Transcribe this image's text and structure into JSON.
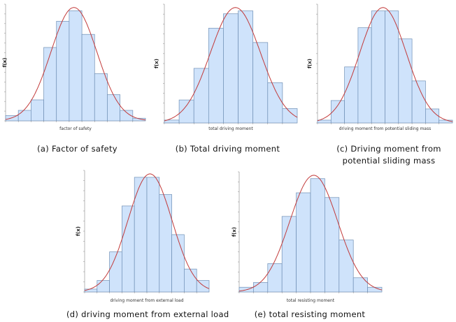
{
  "chart_data": [
    {
      "id": "a",
      "type": "bar",
      "caption": "(a) Factor of safety",
      "xlabel": "factor of safety",
      "ylabel": "f(x)",
      "bins": 11,
      "values": [
        0.01,
        0.02,
        0.04,
        0.14,
        0.19,
        0.21,
        0.165,
        0.09,
        0.05,
        0.02,
        0.005
      ]
    },
    {
      "id": "b",
      "type": "bar",
      "caption": "(b) Total driving moment",
      "xlabel": "total driving moment",
      "ylabel": "f(x)",
      "bins": 9,
      "values": [
        0.005,
        0.04,
        0.095,
        0.165,
        0.19,
        0.195,
        0.14,
        0.07,
        0.025
      ]
    },
    {
      "id": "c",
      "type": "bar",
      "caption": "(c) Driving moment from potential sliding mass",
      "caption_lines": [
        "(c) Driving moment from",
        "potential sliding mass"
      ],
      "xlabel": "driving moment from potential sliding mass",
      "ylabel": "f(x)",
      "bins": 10,
      "values": [
        0.005,
        0.04,
        0.1,
        0.17,
        0.2,
        0.2,
        0.15,
        0.075,
        0.025,
        0.005
      ]
    },
    {
      "id": "d",
      "type": "bar",
      "caption": "(d) driving moment from external load",
      "xlabel": "driving moment from external load",
      "ylabel": "f(x)",
      "bins": 10,
      "values": [
        0.005,
        0.02,
        0.07,
        0.15,
        0.2,
        0.2,
        0.17,
        0.1,
        0.04,
        0.02
      ]
    },
    {
      "id": "e",
      "type": "bar",
      "caption": "(e) total resisting moment",
      "xlabel": "total resisting moment",
      "ylabel": "f(x)",
      "bins": 10,
      "values": [
        0.01,
        0.02,
        0.06,
        0.16,
        0.21,
        0.24,
        0.2,
        0.11,
        0.03,
        0.01
      ]
    }
  ]
}
